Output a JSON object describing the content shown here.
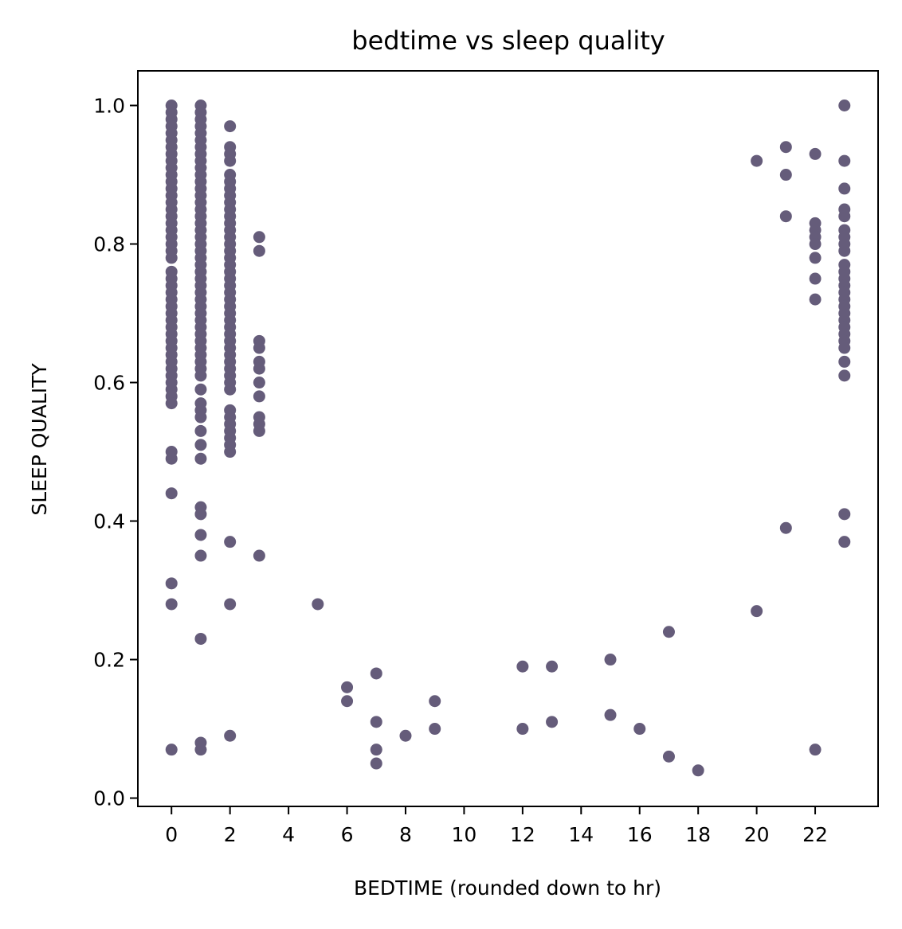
{
  "chart_data": {
    "type": "scatter",
    "title": "bedtime vs sleep quality",
    "xlabel": "BEDTIME (rounded down to hr)",
    "ylabel": "SLEEP QUALITY",
    "xlim": [
      -1.15,
      24.15
    ],
    "ylim": [
      -0.012,
      1.05
    ],
    "xticks": [
      0,
      2,
      4,
      6,
      8,
      10,
      12,
      14,
      16,
      18,
      20,
      22
    ],
    "xtick_labels": [
      "0",
      "2",
      "4",
      "6",
      "8",
      "10",
      "12",
      "14",
      "16",
      "18",
      "20",
      "22"
    ],
    "yticks": [
      0.0,
      0.2,
      0.4,
      0.6,
      0.8,
      1.0
    ],
    "ytick_labels": [
      "0.0",
      "0.2",
      "0.4",
      "0.6",
      "0.8",
      "1.0"
    ],
    "grid": false,
    "marker_color": "#655c7a",
    "series": [
      {
        "points": [
          [
            0,
            1.0
          ],
          [
            0,
            0.99
          ],
          [
            0,
            0.98
          ],
          [
            0,
            0.97
          ],
          [
            0,
            0.96
          ],
          [
            0,
            0.95
          ],
          [
            0,
            0.94
          ],
          [
            0,
            0.93
          ],
          [
            0,
            0.92
          ],
          [
            0,
            0.91
          ],
          [
            0,
            0.9
          ],
          [
            0,
            0.89
          ],
          [
            0,
            0.88
          ],
          [
            0,
            0.87
          ],
          [
            0,
            0.86
          ],
          [
            0,
            0.85
          ],
          [
            0,
            0.84
          ],
          [
            0,
            0.83
          ],
          [
            0,
            0.82
          ],
          [
            0,
            0.81
          ],
          [
            0,
            0.8
          ],
          [
            0,
            0.79
          ],
          [
            0,
            0.78
          ],
          [
            0,
            0.76
          ],
          [
            0,
            0.75
          ],
          [
            0,
            0.74
          ],
          [
            0,
            0.73
          ],
          [
            0,
            0.72
          ],
          [
            0,
            0.71
          ],
          [
            0,
            0.7
          ],
          [
            0,
            0.69
          ],
          [
            0,
            0.68
          ],
          [
            0,
            0.67
          ],
          [
            0,
            0.66
          ],
          [
            0,
            0.65
          ],
          [
            0,
            0.64
          ],
          [
            0,
            0.63
          ],
          [
            0,
            0.62
          ],
          [
            0,
            0.61
          ],
          [
            0,
            0.6
          ],
          [
            0,
            0.59
          ],
          [
            0,
            0.58
          ],
          [
            0,
            0.57
          ],
          [
            0,
            0.5
          ],
          [
            0,
            0.49
          ],
          [
            0,
            0.44
          ],
          [
            0,
            0.31
          ],
          [
            0,
            0.28
          ],
          [
            0,
            0.07
          ],
          [
            1,
            1.0
          ],
          [
            1,
            0.99
          ],
          [
            1,
            0.98
          ],
          [
            1,
            0.97
          ],
          [
            1,
            0.96
          ],
          [
            1,
            0.95
          ],
          [
            1,
            0.94
          ],
          [
            1,
            0.93
          ],
          [
            1,
            0.92
          ],
          [
            1,
            0.91
          ],
          [
            1,
            0.9
          ],
          [
            1,
            0.89
          ],
          [
            1,
            0.88
          ],
          [
            1,
            0.87
          ],
          [
            1,
            0.86
          ],
          [
            1,
            0.85
          ],
          [
            1,
            0.84
          ],
          [
            1,
            0.83
          ],
          [
            1,
            0.82
          ],
          [
            1,
            0.81
          ],
          [
            1,
            0.8
          ],
          [
            1,
            0.79
          ],
          [
            1,
            0.78
          ],
          [
            1,
            0.77
          ],
          [
            1,
            0.76
          ],
          [
            1,
            0.75
          ],
          [
            1,
            0.74
          ],
          [
            1,
            0.73
          ],
          [
            1,
            0.72
          ],
          [
            1,
            0.71
          ],
          [
            1,
            0.7
          ],
          [
            1,
            0.69
          ],
          [
            1,
            0.68
          ],
          [
            1,
            0.67
          ],
          [
            1,
            0.66
          ],
          [
            1,
            0.65
          ],
          [
            1,
            0.64
          ],
          [
            1,
            0.63
          ],
          [
            1,
            0.62
          ],
          [
            1,
            0.61
          ],
          [
            1,
            0.59
          ],
          [
            1,
            0.57
          ],
          [
            1,
            0.56
          ],
          [
            1,
            0.55
          ],
          [
            1,
            0.53
          ],
          [
            1,
            0.51
          ],
          [
            1,
            0.49
          ],
          [
            1,
            0.42
          ],
          [
            1,
            0.41
          ],
          [
            1,
            0.38
          ],
          [
            1,
            0.35
          ],
          [
            1,
            0.23
          ],
          [
            1,
            0.08
          ],
          [
            1,
            0.07
          ],
          [
            2,
            0.97
          ],
          [
            2,
            0.94
          ],
          [
            2,
            0.93
          ],
          [
            2,
            0.92
          ],
          [
            2,
            0.9
          ],
          [
            2,
            0.89
          ],
          [
            2,
            0.88
          ],
          [
            2,
            0.87
          ],
          [
            2,
            0.86
          ],
          [
            2,
            0.85
          ],
          [
            2,
            0.84
          ],
          [
            2,
            0.83
          ],
          [
            2,
            0.82
          ],
          [
            2,
            0.81
          ],
          [
            2,
            0.8
          ],
          [
            2,
            0.79
          ],
          [
            2,
            0.78
          ],
          [
            2,
            0.77
          ],
          [
            2,
            0.76
          ],
          [
            2,
            0.75
          ],
          [
            2,
            0.74
          ],
          [
            2,
            0.73
          ],
          [
            2,
            0.72
          ],
          [
            2,
            0.71
          ],
          [
            2,
            0.7
          ],
          [
            2,
            0.69
          ],
          [
            2,
            0.68
          ],
          [
            2,
            0.67
          ],
          [
            2,
            0.66
          ],
          [
            2,
            0.65
          ],
          [
            2,
            0.64
          ],
          [
            2,
            0.63
          ],
          [
            2,
            0.62
          ],
          [
            2,
            0.61
          ],
          [
            2,
            0.6
          ],
          [
            2,
            0.59
          ],
          [
            2,
            0.56
          ],
          [
            2,
            0.55
          ],
          [
            2,
            0.54
          ],
          [
            2,
            0.53
          ],
          [
            2,
            0.52
          ],
          [
            2,
            0.51
          ],
          [
            2,
            0.5
          ],
          [
            2,
            0.37
          ],
          [
            2,
            0.28
          ],
          [
            2,
            0.09
          ],
          [
            3,
            0.81
          ],
          [
            3,
            0.79
          ],
          [
            3,
            0.66
          ],
          [
            3,
            0.65
          ],
          [
            3,
            0.63
          ],
          [
            3,
            0.62
          ],
          [
            3,
            0.6
          ],
          [
            3,
            0.58
          ],
          [
            3,
            0.55
          ],
          [
            3,
            0.54
          ],
          [
            3,
            0.53
          ],
          [
            3,
            0.35
          ],
          [
            5,
            0.28
          ],
          [
            6,
            0.16
          ],
          [
            6,
            0.14
          ],
          [
            7,
            0.18
          ],
          [
            7,
            0.11
          ],
          [
            7,
            0.07
          ],
          [
            7,
            0.05
          ],
          [
            8,
            0.09
          ],
          [
            9,
            0.14
          ],
          [
            9,
            0.1
          ],
          [
            12,
            0.19
          ],
          [
            12,
            0.1
          ],
          [
            13,
            0.19
          ],
          [
            13,
            0.11
          ],
          [
            15,
            0.2
          ],
          [
            15,
            0.12
          ],
          [
            16,
            0.1
          ],
          [
            17,
            0.24
          ],
          [
            17,
            0.06
          ],
          [
            18,
            0.04
          ],
          [
            20,
            0.92
          ],
          [
            20,
            0.27
          ],
          [
            21,
            0.94
          ],
          [
            21,
            0.9
          ],
          [
            21,
            0.84
          ],
          [
            21,
            0.39
          ],
          [
            22,
            0.93
          ],
          [
            22,
            0.83
          ],
          [
            22,
            0.82
          ],
          [
            22,
            0.81
          ],
          [
            22,
            0.8
          ],
          [
            22,
            0.78
          ],
          [
            22,
            0.75
          ],
          [
            22,
            0.72
          ],
          [
            22,
            0.07
          ],
          [
            23,
            1.0
          ],
          [
            23,
            0.92
          ],
          [
            23,
            0.88
          ],
          [
            23,
            0.85
          ],
          [
            23,
            0.84
          ],
          [
            23,
            0.82
          ],
          [
            23,
            0.81
          ],
          [
            23,
            0.8
          ],
          [
            23,
            0.79
          ],
          [
            23,
            0.77
          ],
          [
            23,
            0.76
          ],
          [
            23,
            0.75
          ],
          [
            23,
            0.74
          ],
          [
            23,
            0.73
          ],
          [
            23,
            0.72
          ],
          [
            23,
            0.71
          ],
          [
            23,
            0.7
          ],
          [
            23,
            0.69
          ],
          [
            23,
            0.68
          ],
          [
            23,
            0.67
          ],
          [
            23,
            0.66
          ],
          [
            23,
            0.65
          ],
          [
            23,
            0.63
          ],
          [
            23,
            0.61
          ],
          [
            23,
            0.41
          ],
          [
            23,
            0.37
          ]
        ]
      }
    ]
  }
}
